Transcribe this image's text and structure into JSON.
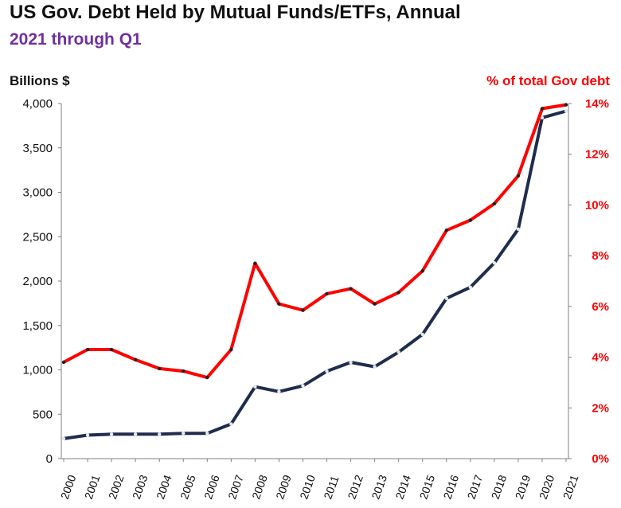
{
  "chart_data": {
    "type": "line",
    "title": "US Gov. Debt Held by Mutual Funds/ETFs,  Annual",
    "subtitle": "2021 through Q1",
    "ylabel": "Billions  $",
    "y2label": "% of total Gov debt",
    "ylim": [
      0,
      4000
    ],
    "y2lim": [
      0,
      14
    ],
    "yticks": [
      "0",
      "500",
      "1,000",
      "1,500",
      "2,000",
      "2,500",
      "3,000",
      "3,500",
      "4,000"
    ],
    "y2ticks": [
      "0%",
      "2%",
      "4%",
      "6%",
      "8%",
      "10%",
      "12%",
      "14%"
    ],
    "grid": false,
    "x": [
      "2000",
      "2001",
      "2002",
      "2003",
      "2004",
      "2005",
      "2006",
      "2007",
      "2008",
      "2009",
      "2010",
      "2011",
      "2012",
      "2013",
      "2014",
      "2015",
      "2016",
      "2017",
      "2018",
      "2019",
      "2020",
      "2021"
    ],
    "series": [
      {
        "axis": "left",
        "color": "#1f2d4d",
        "values": [
          225,
          265,
          275,
          275,
          275,
          285,
          285,
          390,
          810,
          755,
          820,
          985,
          1085,
          1035,
          1200,
          1400,
          1805,
          1930,
          2205,
          2585,
          3840,
          3915
        ]
      },
      {
        "axis": "right",
        "color": "#ff0000",
        "values": [
          3.8,
          4.3,
          4.3,
          3.9,
          3.55,
          3.45,
          3.2,
          4.3,
          7.7,
          6.1,
          5.85,
          6.5,
          6.7,
          6.1,
          6.55,
          7.4,
          9.0,
          9.4,
          10.05,
          11.15,
          13.8,
          13.95
        ]
      }
    ]
  }
}
